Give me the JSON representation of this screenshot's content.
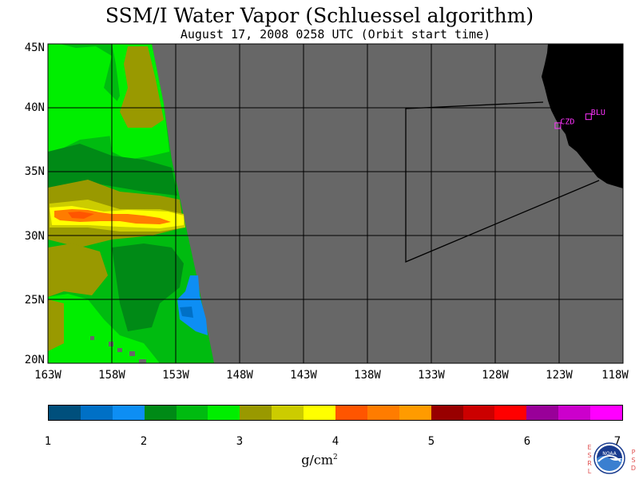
{
  "title": "SSM/I Water Vapor (Schluessel algorithm)",
  "subtitle": "August 17, 2008  0258 UTC  (Orbit start time)",
  "map": {
    "lat_labels": [
      "45N",
      "40N",
      "35N",
      "30N",
      "25N",
      "20N"
    ],
    "lon_labels": [
      "163W",
      "158W",
      "153W",
      "148W",
      "143W",
      "138W",
      "133W",
      "128W",
      "123W",
      "118W"
    ],
    "stations": [
      {
        "label": "CZD",
        "lon": -123.1,
        "lat": 38.6
      },
      {
        "label": "BLU",
        "lon": -120.7,
        "lat": 39.3
      }
    ],
    "colors": {
      "no_data": "#676767",
      "land": "#000000",
      "grid": "#000000",
      "station": "#ff33ff"
    }
  },
  "colorbar": {
    "ticks": [
      "1",
      "2",
      "3",
      "4",
      "5",
      "6",
      "7"
    ],
    "unit": "g/cm",
    "unit_exponent": "2",
    "colors": [
      "#004f7c",
      "#0070c6",
      "#0d8ef4",
      "#008a16",
      "#00bb10",
      "#00ee00",
      "#999900",
      "#cccc00",
      "#ffff00",
      "#ff5500",
      "#ff7c00",
      "#ff9b00",
      "#980000",
      "#cc0000",
      "#ff0000",
      "#990099",
      "#cc00cc",
      "#ff00ff"
    ]
  },
  "logo": {
    "name": "NOAA",
    "left_letters": "ESRL",
    "right_letters": "PSD"
  }
}
